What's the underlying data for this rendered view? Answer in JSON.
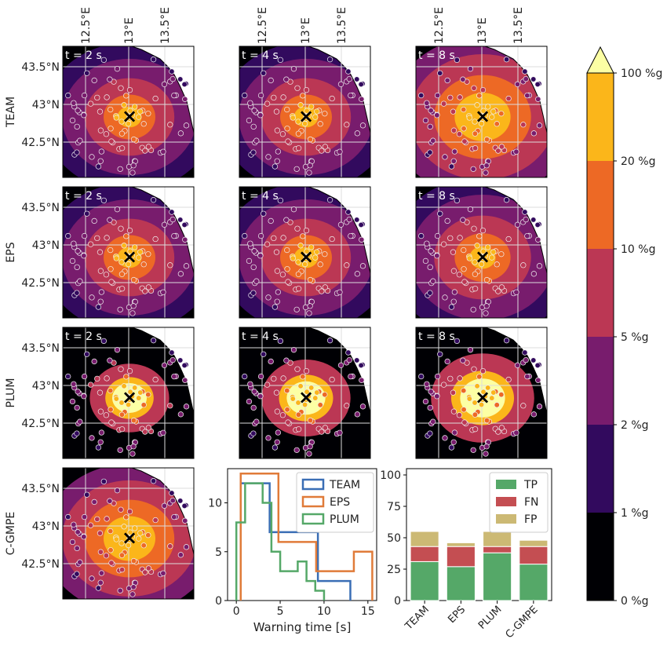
{
  "figure": {
    "row_labels": [
      "TEAM",
      "EPS",
      "PLUM",
      "C-GMPE"
    ],
    "time_labels": [
      "t = 2 s",
      "t = 4 s",
      "t = 8 s"
    ],
    "lon_ticks": [
      "12.5°E",
      "13°E",
      "13.5°E"
    ],
    "lat_ticks": [
      "43.5°N",
      "43°N",
      "42.5°N"
    ],
    "epicenter_marker": "×",
    "colorbar": {
      "tick_labels": [
        "0 %g",
        "1 %g",
        "2 %g",
        "5 %g",
        "10 %g",
        "20 %g",
        "100 %g"
      ],
      "colors": [
        "#000004",
        "#320a5e",
        "#781c6d",
        "#bb3754",
        "#ed6925",
        "#fbb61a",
        "#fcffa4"
      ]
    },
    "map_background": "#000004",
    "map_levels_per_row": [
      [
        [
          1,
          2,
          3,
          4,
          5
        ],
        [
          1,
          2,
          3,
          4,
          5
        ],
        [
          2,
          3,
          4,
          5,
          5
        ]
      ],
      [
        [
          1,
          2,
          3,
          4,
          5
        ],
        [
          1,
          2,
          3,
          4,
          5
        ],
        [
          1,
          2,
          3,
          4,
          5
        ]
      ],
      [
        [
          0,
          3,
          5,
          6
        ],
        [
          0,
          3,
          5,
          6
        ],
        [
          0,
          3,
          5,
          6
        ]
      ],
      [
        [
          2,
          3,
          4,
          5
        ]
      ]
    ]
  },
  "chart_data": [
    {
      "type": "line",
      "subtype": "step-histogram",
      "xlabel": "Warning time [s]",
      "ylabel": "",
      "xlim": [
        -1,
        16
      ],
      "ylim": [
        0,
        13.5
      ],
      "x_ticks": [
        "0",
        "5",
        "10",
        "15"
      ],
      "y_ticks": [
        "0",
        "5",
        "10"
      ],
      "legend": "top-right",
      "series": [
        {
          "name": "TEAM",
          "color": "#3a6eb5",
          "edges": [
            0.5,
            2,
            3.8,
            5.6,
            7.5,
            9.3,
            11.2,
            13
          ],
          "counts": [
            12,
            12,
            7,
            7,
            7,
            2,
            2
          ]
        },
        {
          "name": "EPS",
          "color": "#e07b39",
          "edges": [
            0.5,
            2.7,
            4.8,
            7,
            9.1,
            11.3,
            13.4,
            15.5
          ],
          "counts": [
            13,
            13,
            6,
            6,
            3,
            3,
            5
          ]
        },
        {
          "name": "PLUM",
          "color": "#55a868",
          "edges": [
            0,
            1,
            2,
            3,
            4,
            5,
            6,
            7,
            8,
            9,
            10
          ],
          "counts": [
            8,
            12,
            12,
            10,
            5,
            3,
            3,
            4,
            2,
            1
          ]
        }
      ]
    },
    {
      "type": "bar",
      "subtype": "stacked",
      "categories": [
        "TEAM",
        "EPS",
        "PLUM",
        "C-GMPE"
      ],
      "ylim": [
        0,
        105
      ],
      "y_ticks": [
        "0",
        "25",
        "50",
        "75",
        "100"
      ],
      "legend": "top-right",
      "series": [
        {
          "name": "TP",
          "color": "#55a868",
          "values": [
            31,
            27,
            38,
            29
          ]
        },
        {
          "name": "FN",
          "color": "#c44e52",
          "values": [
            12,
            16,
            5,
            14
          ]
        },
        {
          "name": "FP",
          "color": "#ccb974",
          "values": [
            12,
            3,
            12,
            5
          ]
        }
      ]
    }
  ]
}
